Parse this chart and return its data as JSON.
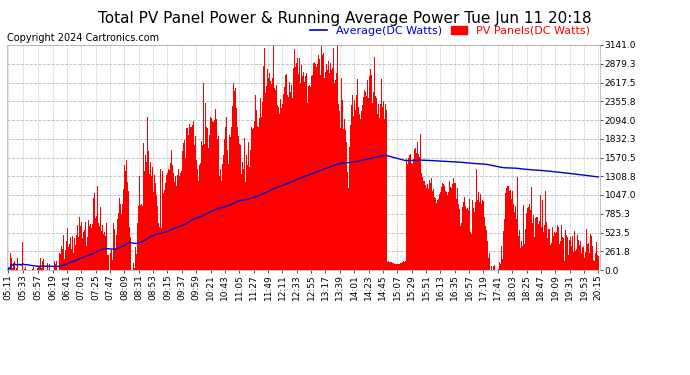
{
  "title": "Total PV Panel Power & Running Average Power Tue Jun 11 20:18",
  "copyright": "Copyright 2024 Cartronics.com",
  "legend_avg": "Average(DC Watts)",
  "legend_pv": "PV Panels(DC Watts)",
  "ymax": 3141.0,
  "ymin": 0.0,
  "yticks": [
    0.0,
    261.8,
    523.5,
    785.3,
    1047.0,
    1308.8,
    1570.5,
    1832.3,
    2094.0,
    2355.8,
    2617.5,
    2879.3,
    3141.0
  ],
  "background_color": "#ffffff",
  "grid_color": "#bbbbbb",
  "fill_color": "#ff0000",
  "line_color": "#0000cc",
  "title_color": "#000000",
  "copyright_color": "#000000",
  "avg_legend_color": "#0000cc",
  "pv_legend_color": "#ff0000",
  "x_labels": [
    "05:11",
    "05:33",
    "05:57",
    "06:19",
    "06:41",
    "07:03",
    "07:25",
    "07:47",
    "08:09",
    "08:31",
    "08:53",
    "09:15",
    "09:37",
    "09:59",
    "10:21",
    "10:43",
    "11:05",
    "11:27",
    "11:49",
    "12:11",
    "12:33",
    "12:55",
    "13:17",
    "13:39",
    "14:01",
    "14:23",
    "14:45",
    "15:07",
    "15:29",
    "15:51",
    "16:13",
    "16:35",
    "16:57",
    "17:19",
    "17:41",
    "18:03",
    "18:25",
    "18:47",
    "19:09",
    "19:31",
    "19:53",
    "20:15"
  ],
  "title_fontsize": 11,
  "copyright_fontsize": 7,
  "tick_fontsize": 6.5,
  "legend_fontsize": 8
}
